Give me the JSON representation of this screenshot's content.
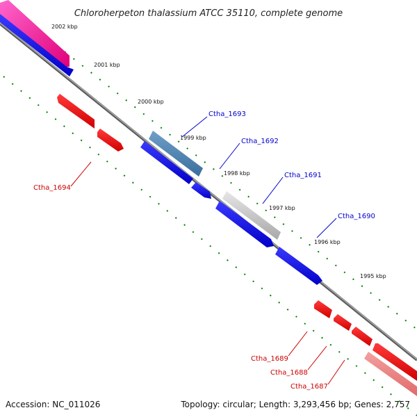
{
  "title": "Chloroherpeton thalassium ATCC 35110, complete genome",
  "footer": {
    "accession": "Accession: NC_011026",
    "info": "Topology: circular; Length: 3,293,456 bp; Genes: 2,757"
  },
  "colors": {
    "forward_gene": "#0000ee",
    "reverse_gene": "#ee0000",
    "label_forward": "#0000cc",
    "label_reverse": "#cc0000",
    "backbone": "#808080",
    "tick": "#008000"
  },
  "kbp_labels": [
    "2002 kbp",
    "2001 kbp",
    "2000 kbp",
    "1999 kbp",
    "1998 kbp",
    "1997 kbp",
    "1996 kbp",
    "1995 kbp"
  ],
  "gene_labels": [
    {
      "name": "Ctha_1693",
      "strand": "forward"
    },
    {
      "name": "Ctha_1692",
      "strand": "forward"
    },
    {
      "name": "Ctha_1691",
      "strand": "forward"
    },
    {
      "name": "Ctha_1690",
      "strand": "forward"
    },
    {
      "name": "Ctha_1694",
      "strand": "reverse"
    },
    {
      "name": "Ctha_1689",
      "strand": "reverse"
    },
    {
      "name": "Ctha_1688",
      "strand": "reverse"
    },
    {
      "name": "Ctha_1687",
      "strand": "reverse"
    }
  ]
}
